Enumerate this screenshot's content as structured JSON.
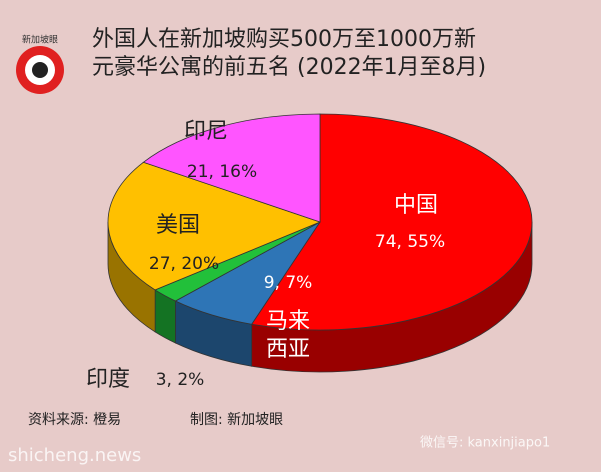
{
  "chart_data": {
    "type": "pie3d",
    "title": "外国人在新加坡购买500万至1000万新元豪华公寓的前五名 (2022年1月至8月)",
    "logo": "新加坡眼",
    "categories": [
      "中国",
      "马来西亚",
      "印度",
      "美国",
      "印尼"
    ],
    "values": [
      74,
      9,
      3,
      27,
      21
    ],
    "value_labels": [
      "74, 55%",
      "9, 7%",
      "3, 2%",
      "27, 20%",
      "21, 16%"
    ],
    "colors": [
      "#ff0000",
      "#2e75b6",
      "#22c03a",
      "#ffc000",
      "#ff55ff"
    ],
    "source": "资料来源:  橙易",
    "credit": "制图:  新加坡眼",
    "watermark_left": "shicheng.news",
    "watermark_right": "微信号: kanxinjiapo1"
  }
}
